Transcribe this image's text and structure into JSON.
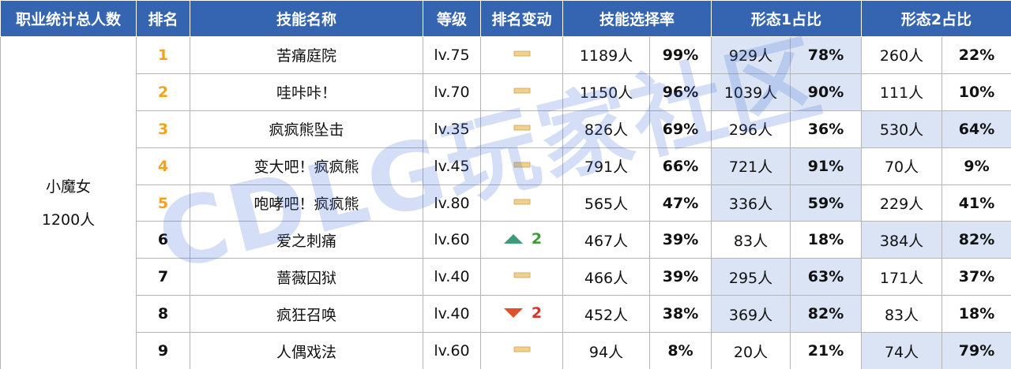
{
  "header": [
    "职业统计总人数",
    "排名",
    "技能名称",
    "等级",
    "排名变动",
    "技能选择率",
    "形态1占比",
    "形态2占比"
  ],
  "class": {
    "name": "小魔女",
    "total": "1200人"
  },
  "watermark": "CDLG玩家社区",
  "rows": [
    {
      "rank": "1",
      "skill": "苦痛庭院",
      "level": "lv.75",
      "trend": "same",
      "count": "1189人",
      "rate": "99%",
      "form1_count": "929人",
      "form1_pct": "78%",
      "form2_count": "260人",
      "form2_pct": "22%",
      "highlight": 1
    },
    {
      "rank": "2",
      "skill": "哇咔咔！",
      "level": "lv.70",
      "trend": "same",
      "count": "1150人",
      "rate": "96%",
      "form1_count": "1039人",
      "form1_pct": "90%",
      "form2_count": "111人",
      "form2_pct": "10%",
      "highlight": 1
    },
    {
      "rank": "3",
      "skill": "疯疯熊坠击",
      "level": "lv.35",
      "trend": "same",
      "count": "826人",
      "rate": "69%",
      "form1_count": "296人",
      "form1_pct": "36%",
      "form2_count": "530人",
      "form2_pct": "64%",
      "highlight": 2
    },
    {
      "rank": "4",
      "skill": "变大吧！疯疯熊",
      "level": "lv.45",
      "trend": "same",
      "count": "791人",
      "rate": "66%",
      "form1_count": "721人",
      "form1_pct": "91%",
      "form2_count": "70人",
      "form2_pct": "9%",
      "highlight": 1
    },
    {
      "rank": "5",
      "skill": "咆哮吧！疯疯熊",
      "level": "lv.80",
      "trend": "same",
      "count": "565人",
      "rate": "47%",
      "form1_count": "336人",
      "form1_pct": "59%",
      "form2_count": "229人",
      "form2_pct": "41%",
      "highlight": 1
    },
    {
      "rank": "6",
      "skill": "爱之刺痛",
      "level": "lv.60",
      "trend": "up",
      "change": "2",
      "count": "467人",
      "rate": "39%",
      "form1_count": "83人",
      "form1_pct": "18%",
      "form2_count": "384人",
      "form2_pct": "82%",
      "highlight": 2
    },
    {
      "rank": "7",
      "skill": "蔷薇囚狱",
      "level": "lv.40",
      "trend": "same",
      "count": "466人",
      "rate": "39%",
      "form1_count": "295人",
      "form1_pct": "63%",
      "form2_count": "171人",
      "form2_pct": "37%",
      "highlight": 1
    },
    {
      "rank": "8",
      "skill": "疯狂召唤",
      "level": "lv.40",
      "trend": "down",
      "change": "2",
      "count": "452人",
      "rate": "38%",
      "form1_count": "369人",
      "form1_pct": "82%",
      "form2_count": "83人",
      "form2_pct": "18%",
      "highlight": 1
    },
    {
      "rank": "9",
      "skill": "人偶戏法",
      "level": "lv.60",
      "trend": "same",
      "count": "94人",
      "rate": "8%",
      "form1_count": "20人",
      "form1_pct": "21%",
      "form2_count": "74人",
      "form2_pct": "79%",
      "highlight": 2
    }
  ]
}
